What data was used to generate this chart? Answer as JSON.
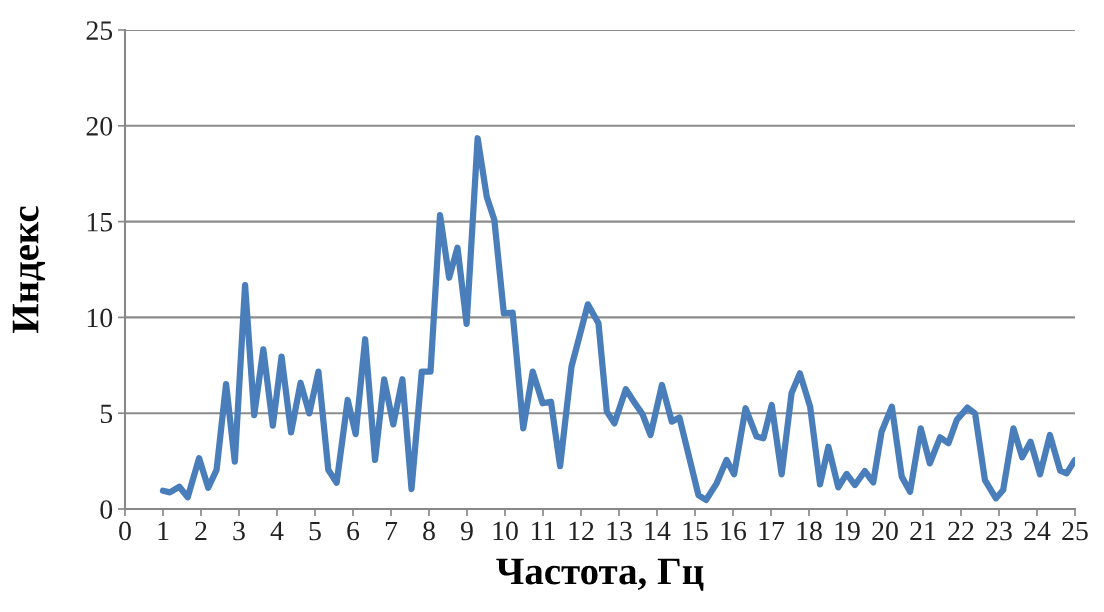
{
  "chart_data": {
    "type": "line",
    "xlabel": "Частота, Гц",
    "ylabel": "Индекс",
    "xlim": [
      0,
      25
    ],
    "xticks": [
      0,
      1,
      2,
      3,
      4,
      5,
      6,
      7,
      8,
      9,
      10,
      11,
      12,
      13,
      14,
      15,
      16,
      17,
      18,
      19,
      20,
      21,
      22,
      23,
      24,
      25
    ],
    "ylim": [
      0,
      25
    ],
    "yticks": [
      0,
      5,
      10,
      15,
      20,
      25
    ],
    "grid": "y",
    "marker": "none",
    "line_style": "solid",
    "series": [
      {
        "color": "#4a7ebb",
        "x": [
          1.0,
          1.18,
          1.43,
          1.65,
          1.95,
          2.19,
          2.41,
          2.66,
          2.89,
          3.16,
          3.4,
          3.64,
          3.89,
          4.12,
          4.37,
          4.62,
          4.85,
          5.09,
          5.35,
          5.57,
          5.86,
          6.07,
          6.32,
          6.58,
          6.82,
          7.06,
          7.3,
          7.54,
          7.81,
          8.04,
          8.29,
          8.53,
          8.75,
          8.99,
          9.28,
          9.52,
          9.72,
          9.97,
          10.2,
          10.48,
          10.73,
          10.99,
          11.21,
          11.45,
          11.75,
          12.18,
          12.46,
          12.68,
          12.88,
          13.18,
          13.42,
          13.62,
          13.83,
          14.13,
          14.39,
          14.59,
          15.09,
          15.29,
          15.57,
          15.83,
          16.03,
          16.33,
          16.62,
          16.8,
          17.02,
          17.28,
          17.54,
          17.76,
          18.03,
          18.29,
          18.51,
          18.77,
          18.99,
          19.21,
          19.47,
          19.69,
          19.91,
          20.18,
          20.44,
          20.66,
          20.94,
          21.18,
          21.45,
          21.67,
          21.89,
          22.17,
          22.37,
          22.63,
          22.92,
          23.11,
          23.38,
          23.61,
          23.83,
          24.08,
          24.34,
          24.61,
          24.78,
          25.0
        ],
        "values": [
          0.95,
          0.87,
          1.16,
          0.61,
          2.65,
          1.11,
          2.04,
          6.52,
          2.47,
          11.69,
          4.9,
          8.33,
          4.35,
          7.95,
          4.0,
          6.59,
          4.99,
          7.17,
          2.04,
          1.37,
          5.69,
          3.91,
          8.86,
          2.56,
          6.77,
          4.42,
          6.77,
          1.04,
          7.17,
          7.17,
          15.34,
          12.07,
          13.64,
          9.66,
          19.35,
          16.3,
          15.08,
          10.21,
          10.25,
          4.21,
          7.17,
          5.52,
          5.6,
          2.24,
          7.43,
          10.68,
          9.69,
          5.08,
          4.47,
          6.25,
          5.52,
          4.94,
          3.86,
          6.47,
          4.56,
          4.77,
          0.73,
          0.47,
          1.34,
          2.56,
          1.81,
          5.26,
          3.78,
          3.69,
          5.43,
          1.81,
          6.04,
          7.08,
          5.34,
          1.29,
          3.25,
          1.13,
          1.83,
          1.25,
          1.98,
          1.39,
          4.03,
          5.34,
          1.69,
          0.9,
          4.21,
          2.38,
          3.74,
          3.43,
          4.65,
          5.29,
          4.99,
          1.51,
          0.56,
          0.99,
          4.21,
          2.7,
          3.51,
          1.81,
          3.86,
          2.0,
          1.86,
          2.56
        ]
      }
    ]
  }
}
